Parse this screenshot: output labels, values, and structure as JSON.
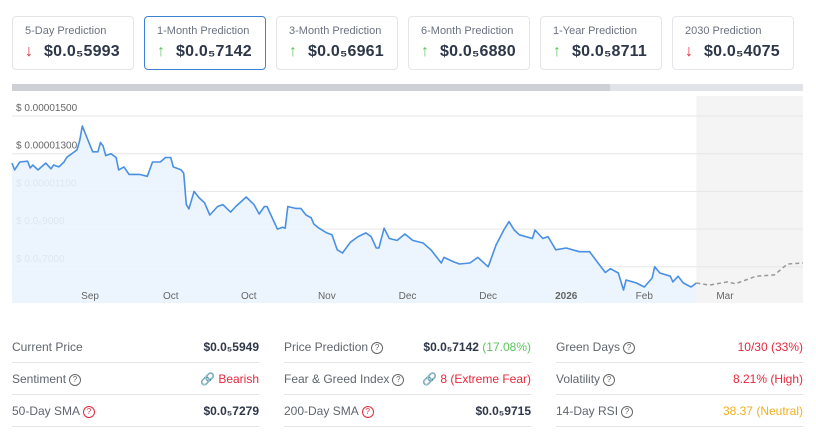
{
  "predictions": [
    {
      "label": "5-Day Prediction",
      "value": "$0.0₅5993",
      "direction": "down",
      "active": false
    },
    {
      "label": "1-Month Prediction",
      "value": "$0.0₅7142",
      "direction": "up",
      "active": true
    },
    {
      "label": "3-Month Prediction",
      "value": "$0.0₅6961",
      "direction": "up",
      "active": false
    },
    {
      "label": "6-Month Prediction",
      "value": "$0.0₅6880",
      "direction": "up",
      "active": false
    },
    {
      "label": "1-Year Prediction",
      "value": "$0.0₅8711",
      "direction": "up",
      "active": false
    },
    {
      "label": "2030 Prediction",
      "value": "$0.0₅4075",
      "direction": "down",
      "active": false
    }
  ],
  "icons": {
    "up": "arrow-up-icon",
    "down": "arrow-down-icon",
    "help": "question-circle-icon",
    "link": "link-icon"
  },
  "colors": {
    "up": "#5cc55c",
    "down": "#e6283c",
    "line": "#4a90e2",
    "area": "#eaf3fd",
    "forecast": "#999999",
    "neutral": "#f2b01e",
    "active_border": "#3b82d6"
  },
  "chart_data": {
    "type": "line",
    "xlim": [
      "2025-06-02",
      "2026-04-02"
    ],
    "ylim": [
      5.08e-06,
      1.606e-05
    ],
    "grid": true,
    "yticks": [
      {
        "value": 1.5e-05,
        "label": "$ 0.00001500"
      },
      {
        "value": 1.3e-05,
        "label": "$ 0.00001300"
      },
      {
        "value": 1.1e-05,
        "label": "$ 0.00001100"
      },
      {
        "value": 9e-06,
        "label": "$ 0.0₅9000"
      },
      {
        "value": 7e-06,
        "label": "$ 0.0₅7000"
      }
    ],
    "xticks": [
      {
        "date": "2025-07-02",
        "label": "Sep"
      },
      {
        "date": "2025-08-02",
        "label": "Oct"
      },
      {
        "date": "2025-09-01",
        "label": "Oct"
      },
      {
        "date": "2025-10-01",
        "label": "Nov"
      },
      {
        "date": "2025-11-01",
        "label": "Dec"
      },
      {
        "date": "2025-12-02",
        "label": "Dec"
      },
      {
        "date": "2026-01-01",
        "label": "2026",
        "bold": true
      },
      {
        "date": "2026-01-31",
        "label": "Feb"
      },
      {
        "date": "2026-03-03",
        "label": "Mar"
      }
    ],
    "navigator_selected_fraction": 0.756,
    "history": [
      [
        "2025-06-02",
        1.25e-05
      ],
      [
        "2025-06-03",
        1.214e-05
      ],
      [
        "2025-06-05",
        1.256e-05
      ],
      [
        "2025-06-08",
        1.26e-05
      ],
      [
        "2025-06-09",
        1.224e-05
      ],
      [
        "2025-06-10",
        1.24e-05
      ],
      [
        "2025-06-12",
        1.214e-05
      ],
      [
        "2025-06-15",
        1.25e-05
      ],
      [
        "2025-06-17",
        1.22e-05
      ],
      [
        "2025-06-18",
        1.24e-05
      ],
      [
        "2025-06-20",
        1.23e-05
      ],
      [
        "2025-06-22",
        1.256e-05
      ],
      [
        "2025-06-23",
        1.28e-05
      ],
      [
        "2025-06-25",
        1.3e-05
      ],
      [
        "2025-06-27",
        1.32e-05
      ],
      [
        "2025-06-28",
        1.37e-05
      ],
      [
        "2025-06-29",
        1.447e-05
      ],
      [
        "2025-07-01",
        1.378e-05
      ],
      [
        "2025-07-03",
        1.31e-05
      ],
      [
        "2025-07-05",
        1.31e-05
      ],
      [
        "2025-07-06",
        1.36e-05
      ],
      [
        "2025-07-07",
        1.34e-05
      ],
      [
        "2025-07-08",
        1.29e-05
      ],
      [
        "2025-07-10",
        1.3e-05
      ],
      [
        "2025-07-12",
        1.28e-05
      ],
      [
        "2025-07-13",
        1.214e-05
      ],
      [
        "2025-07-15",
        1.23e-05
      ],
      [
        "2025-07-17",
        1.19e-05
      ],
      [
        "2025-07-18",
        1.19e-05
      ],
      [
        "2025-07-21",
        1.19e-05
      ],
      [
        "2025-07-24",
        1.18e-05
      ],
      [
        "2025-07-26",
        1.256e-05
      ],
      [
        "2025-07-29",
        1.256e-05
      ],
      [
        "2025-07-31",
        1.28e-05
      ],
      [
        "2025-08-02",
        1.28e-05
      ],
      [
        "2025-08-03",
        1.23e-05
      ],
      [
        "2025-08-06",
        1.214e-05
      ],
      [
        "2025-08-07",
        1.197e-05
      ],
      [
        "2025-08-08",
        1.03e-05
      ],
      [
        "2025-08-09",
        1.007e-05
      ],
      [
        "2025-08-11",
        1.1e-05
      ],
      [
        "2025-08-13",
        1.065e-05
      ],
      [
        "2025-08-15",
        1.04e-05
      ],
      [
        "2025-08-17",
        9.75e-06
      ],
      [
        "2025-08-20",
        1.02e-05
      ],
      [
        "2025-08-22",
        1.03e-05
      ],
      [
        "2025-08-25",
        9.9e-06
      ],
      [
        "2025-08-27",
        1.02e-05
      ],
      [
        "2025-08-31",
        1.07e-05
      ],
      [
        "2025-09-03",
        1.03e-05
      ],
      [
        "2025-09-05",
        9.8e-06
      ],
      [
        "2025-09-07",
        1.02e-05
      ],
      [
        "2025-09-08",
        1.02e-05
      ],
      [
        "2025-09-12",
        9e-06
      ],
      [
        "2025-09-14",
        9.1e-06
      ],
      [
        "2025-09-15",
        9.05e-06
      ],
      [
        "2025-09-16",
        1.02e-05
      ],
      [
        "2025-09-19",
        1.01e-05
      ],
      [
        "2025-09-21",
        1.01e-05
      ],
      [
        "2025-09-23",
        9.75e-06
      ],
      [
        "2025-09-25",
        9.6e-06
      ],
      [
        "2025-09-26",
        9.27e-06
      ],
      [
        "2025-09-28",
        9.05e-06
      ],
      [
        "2025-10-01",
        8.8e-06
      ],
      [
        "2025-10-03",
        8.7e-06
      ],
      [
        "2025-10-05",
        7.9e-06
      ],
      [
        "2025-10-07",
        7.73e-06
      ],
      [
        "2025-10-10",
        8.3e-06
      ],
      [
        "2025-10-13",
        8.6e-06
      ],
      [
        "2025-10-16",
        8.8e-06
      ],
      [
        "2025-10-18",
        8.6e-06
      ],
      [
        "2025-10-20",
        8e-06
      ],
      [
        "2025-10-21",
        8e-06
      ],
      [
        "2025-10-23",
        9.05e-06
      ],
      [
        "2025-10-25",
        8.5e-06
      ],
      [
        "2025-10-28",
        8.4e-06
      ],
      [
        "2025-10-31",
        8.74e-06
      ],
      [
        "2025-11-03",
        8.4e-06
      ],
      [
        "2025-11-07",
        8.26e-06
      ],
      [
        "2025-11-10",
        7.9e-06
      ],
      [
        "2025-11-14",
        7.2e-06
      ],
      [
        "2025-11-15",
        7.5e-06
      ],
      [
        "2025-11-19",
        7.25e-06
      ],
      [
        "2025-11-21",
        7.15e-06
      ],
      [
        "2025-11-25",
        7.2e-06
      ],
      [
        "2025-11-28",
        7.5e-06
      ],
      [
        "2025-12-02",
        7e-06
      ],
      [
        "2025-12-05",
        8.15e-06
      ],
      [
        "2025-12-08",
        8.95e-06
      ],
      [
        "2025-12-10",
        9.4e-06
      ],
      [
        "2025-12-12",
        8.95e-06
      ],
      [
        "2025-12-14",
        8.7e-06
      ],
      [
        "2025-12-19",
        8.5e-06
      ],
      [
        "2025-12-20",
        8.95e-06
      ],
      [
        "2025-12-23",
        8.5e-06
      ],
      [
        "2025-12-25",
        8.6e-06
      ],
      [
        "2025-12-28",
        7.9e-06
      ],
      [
        "2026-01-01",
        8e-06
      ],
      [
        "2026-01-06",
        7.8e-06
      ],
      [
        "2026-01-10",
        7.8e-06
      ],
      [
        "2026-01-13",
        7.25e-06
      ],
      [
        "2026-01-16",
        6.7e-06
      ],
      [
        "2026-01-18",
        6.9e-06
      ],
      [
        "2026-01-21",
        6.67e-06
      ],
      [
        "2026-01-23",
        5.77e-06
      ],
      [
        "2026-01-24",
        6.3e-06
      ],
      [
        "2026-01-28",
        6.14e-06
      ],
      [
        "2026-01-31",
        5.93e-06
      ],
      [
        "2026-02-03",
        6.4e-06
      ],
      [
        "2026-02-04",
        7e-06
      ],
      [
        "2026-02-06",
        6.67e-06
      ],
      [
        "2026-02-10",
        6.5e-06
      ],
      [
        "2026-02-11",
        6.2e-06
      ],
      [
        "2026-02-13",
        6.5e-06
      ],
      [
        "2026-02-15",
        6.14e-06
      ],
      [
        "2026-02-18",
        5.93e-06
      ],
      [
        "2026-02-20",
        6.14e-06
      ]
    ],
    "forecast": [
      [
        "2026-02-20",
        6.14e-06
      ],
      [
        "2026-02-25",
        6.03e-06
      ],
      [
        "2026-03-04",
        6.2e-06
      ],
      [
        "2026-03-07",
        6.1e-06
      ],
      [
        "2026-03-15",
        6.5e-06
      ],
      [
        "2026-03-22",
        6.57e-06
      ],
      [
        "2026-03-27",
        7.15e-06
      ],
      [
        "2026-04-02",
        7.2e-06
      ]
    ]
  },
  "stats": [
    [
      {
        "label": "Current Price",
        "value": "$0.0₅5949",
        "help": false,
        "tone": "default"
      },
      {
        "label": "Sentiment",
        "value": "Bearish",
        "help": true,
        "tone": "red",
        "link": true
      },
      {
        "label": "50-Day SMA",
        "value": "$0.0₅7279",
        "help": "red",
        "tone": "default"
      }
    ],
    [
      {
        "label": "Price Prediction",
        "value": "$0.0₅7142",
        "extra": "(17.08%)",
        "help": true,
        "tone": "default"
      },
      {
        "label": "Fear & Greed Index",
        "value": "8 (Extreme Fear)",
        "help": true,
        "tone": "red",
        "link": true
      },
      {
        "label": "200-Day SMA",
        "value": "$0.0₅9715",
        "help": "red",
        "tone": "default"
      }
    ],
    [
      {
        "label": "Green Days",
        "value": "10/30 (33%)",
        "help": true,
        "tone": "red"
      },
      {
        "label": "Volatility",
        "value": "8.21% (High)",
        "help": true,
        "tone": "red"
      },
      {
        "label": "14-Day RSI",
        "value": "38.37 (Neutral)",
        "help": true,
        "tone": "yellow"
      }
    ]
  ]
}
